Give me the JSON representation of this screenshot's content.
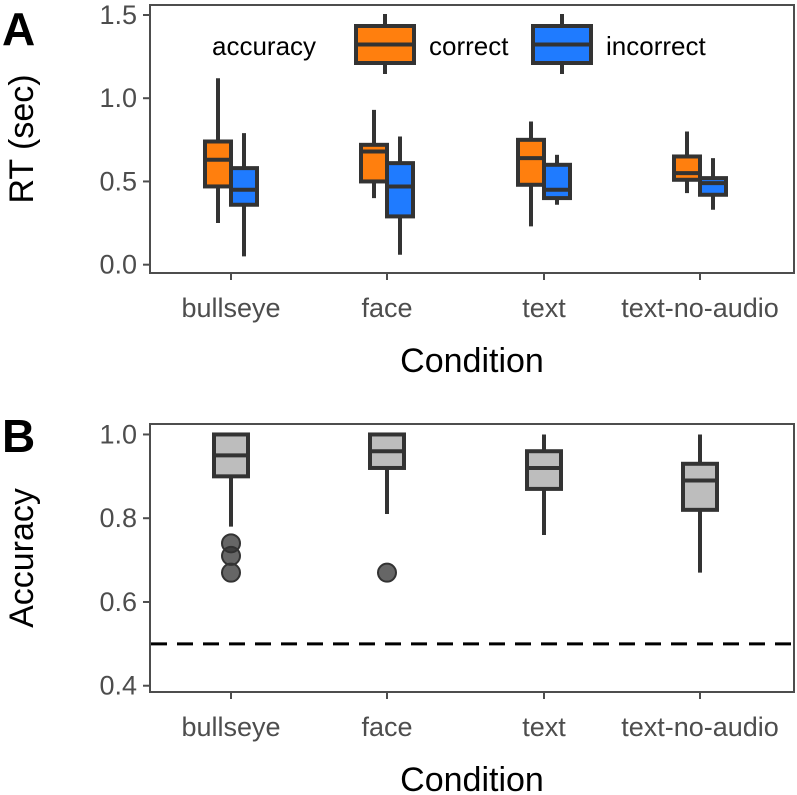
{
  "colors": {
    "correct": "#ff7f0e",
    "incorrect": "#1f7bff",
    "accuracy_box": "#bdbdbd",
    "outline": "#333333",
    "panel_border": "#4d4d4d"
  },
  "chart_data": [
    {
      "panel": "A",
      "type": "boxplot",
      "xlabel": "Condition",
      "ylabel": "RT (sec)",
      "ylim": [
        -0.05,
        1.56
      ],
      "yticks": [
        "0.0",
        "0.5",
        "1.0",
        "1.5"
      ],
      "ytick_values": [
        0,
        0.5,
        1.0,
        1.5
      ],
      "categories": [
        "bullseye",
        "face",
        "text",
        "text-no-audio"
      ],
      "legend": {
        "title": "accuracy",
        "position": "top",
        "entries": [
          "correct",
          "incorrect"
        ]
      },
      "series": [
        {
          "name": "correct",
          "boxes": [
            {
              "min": 0.25,
              "q1": 0.47,
              "median": 0.63,
              "q3": 0.74,
              "max": 1.12
            },
            {
              "min": 0.4,
              "q1": 0.5,
              "median": 0.68,
              "q3": 0.72,
              "max": 0.93
            },
            {
              "min": 0.23,
              "q1": 0.48,
              "median": 0.64,
              "q3": 0.75,
              "max": 0.86
            },
            {
              "min": 0.43,
              "q1": 0.51,
              "median": 0.55,
              "q3": 0.65,
              "max": 0.8
            }
          ]
        },
        {
          "name": "incorrect",
          "boxes": [
            {
              "min": 0.05,
              "q1": 0.36,
              "median": 0.45,
              "q3": 0.58,
              "max": 0.79
            },
            {
              "min": 0.06,
              "q1": 0.29,
              "median": 0.47,
              "q3": 0.61,
              "max": 0.77
            },
            {
              "min": 0.36,
              "q1": 0.4,
              "median": 0.45,
              "q3": 0.6,
              "max": 0.66
            },
            {
              "min": 0.33,
              "q1": 0.42,
              "median": 0.49,
              "q3": 0.52,
              "max": 0.64
            }
          ]
        }
      ]
    },
    {
      "panel": "B",
      "type": "boxplot",
      "xlabel": "Condition",
      "ylabel": "Accuracy",
      "ylim": [
        0.385,
        1.025
      ],
      "yticks": [
        "0.4",
        "0.6",
        "0.8",
        "1.0"
      ],
      "ytick_values": [
        0.4,
        0.6,
        0.8,
        1.0
      ],
      "categories": [
        "bullseye",
        "face",
        "text",
        "text-no-audio"
      ],
      "reference_line": {
        "y": 0.5,
        "style": "dashed"
      },
      "boxes": [
        {
          "min": 0.78,
          "q1": 0.9,
          "median": 0.95,
          "q3": 1.0,
          "max": 1.0,
          "outliers": [
            0.74,
            0.71,
            0.67
          ]
        },
        {
          "min": 0.81,
          "q1": 0.92,
          "median": 0.96,
          "q3": 1.0,
          "max": 1.0,
          "outliers": [
            0.67
          ]
        },
        {
          "min": 0.76,
          "q1": 0.87,
          "median": 0.92,
          "q3": 0.96,
          "max": 1.0,
          "outliers": []
        },
        {
          "min": 0.67,
          "q1": 0.82,
          "median": 0.89,
          "q3": 0.93,
          "max": 1.0,
          "outliers": []
        }
      ]
    }
  ]
}
